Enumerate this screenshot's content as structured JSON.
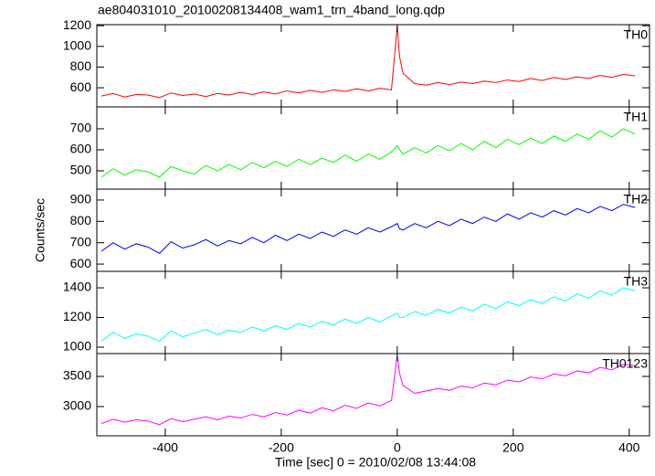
{
  "chart_data": [
    {
      "type": "line",
      "title": "ae804031010_20100208134408_wam1_trn_4band_long.qdp",
      "x": [
        -510,
        -490,
        -470,
        -450,
        -430,
        -410,
        -390,
        -370,
        -350,
        -330,
        -310,
        -290,
        -270,
        -250,
        -230,
        -210,
        -190,
        -170,
        -150,
        -130,
        -110,
        -90,
        -70,
        -50,
        -30,
        -10,
        0,
        4,
        10,
        30,
        50,
        70,
        90,
        110,
        130,
        150,
        170,
        190,
        210,
        230,
        250,
        270,
        290,
        310,
        330,
        350,
        370,
        390,
        410
      ],
      "series": [
        {
          "name": "TH0",
          "color": "#ff0000",
          "values": [
            520,
            545,
            510,
            535,
            530,
            505,
            550,
            525,
            540,
            515,
            545,
            530,
            555,
            535,
            560,
            540,
            570,
            550,
            575,
            555,
            580,
            565,
            590,
            570,
            595,
            580,
            1200,
            900,
            740,
            640,
            625,
            650,
            630,
            655,
            640,
            665,
            650,
            675,
            660,
            690,
            670,
            700,
            680,
            705,
            690,
            720,
            700,
            730,
            715
          ]
        }
      ],
      "xlim": [
        -518,
        435
      ],
      "xticks": [
        -400,
        -200,
        0,
        200,
        400
      ],
      "ylim": [
        415,
        1210
      ],
      "yticks": [
        600,
        800,
        1000,
        1200
      ]
    },
    {
      "type": "line",
      "x": [
        -510,
        -490,
        -470,
        -450,
        -430,
        -410,
        -390,
        -370,
        -350,
        -330,
        -310,
        -290,
        -270,
        -250,
        -230,
        -210,
        -190,
        -170,
        -150,
        -130,
        -110,
        -90,
        -70,
        -50,
        -30,
        -10,
        0,
        4,
        10,
        30,
        50,
        70,
        90,
        110,
        130,
        150,
        170,
        190,
        210,
        230,
        250,
        270,
        290,
        310,
        330,
        350,
        370,
        390,
        410
      ],
      "series": [
        {
          "name": "TH1",
          "color": "#00ff00",
          "values": [
            470,
            510,
            480,
            505,
            495,
            470,
            520,
            500,
            485,
            525,
            500,
            530,
            505,
            540,
            515,
            545,
            520,
            555,
            530,
            560,
            540,
            575,
            545,
            580,
            555,
            590,
            620,
            600,
            580,
            610,
            585,
            620,
            595,
            630,
            600,
            640,
            610,
            650,
            625,
            655,
            630,
            665,
            640,
            675,
            650,
            690,
            660,
            700,
            675
          ]
        }
      ],
      "xlim": [
        -518,
        435
      ],
      "xticks": [
        -400,
        -200,
        0,
        200,
        400
      ],
      "ylim": [
        413,
        804
      ],
      "yticks": [
        500,
        600,
        700
      ]
    },
    {
      "type": "line",
      "x": [
        -510,
        -490,
        -470,
        -450,
        -430,
        -410,
        -390,
        -370,
        -350,
        -330,
        -310,
        -290,
        -270,
        -250,
        -230,
        -210,
        -190,
        -170,
        -150,
        -130,
        -110,
        -90,
        -70,
        -50,
        -30,
        -10,
        0,
        4,
        10,
        30,
        50,
        70,
        90,
        110,
        130,
        150,
        170,
        190,
        210,
        230,
        250,
        270,
        290,
        310,
        330,
        350,
        370,
        390,
        410
      ],
      "series": [
        {
          "name": "TH2",
          "color": "#0000ff",
          "values": [
            660,
            700,
            670,
            695,
            680,
            650,
            705,
            675,
            690,
            715,
            685,
            710,
            695,
            725,
            700,
            735,
            710,
            740,
            720,
            750,
            730,
            760,
            740,
            770,
            750,
            775,
            790,
            765,
            760,
            790,
            770,
            800,
            780,
            810,
            790,
            820,
            800,
            835,
            810,
            840,
            820,
            850,
            830,
            860,
            840,
            870,
            850,
            880,
            865
          ]
        }
      ],
      "xlim": [
        -518,
        435
      ],
      "xticks": [
        -400,
        -200,
        0,
        200,
        400
      ],
      "ylim": [
        566,
        951
      ],
      "yticks": [
        600,
        700,
        800,
        900
      ]
    },
    {
      "type": "line",
      "ylabel": "Counts/sec",
      "x": [
        -510,
        -490,
        -470,
        -450,
        -430,
        -410,
        -390,
        -370,
        -350,
        -330,
        -310,
        -290,
        -270,
        -250,
        -230,
        -210,
        -190,
        -170,
        -150,
        -130,
        -110,
        -90,
        -70,
        -50,
        -30,
        -10,
        0,
        4,
        10,
        30,
        50,
        70,
        90,
        110,
        130,
        150,
        170,
        190,
        210,
        230,
        250,
        270,
        290,
        310,
        330,
        350,
        370,
        390,
        410
      ],
      "series": [
        {
          "name": "TH3",
          "color": "#00ffff",
          "values": [
            1040,
            1100,
            1060,
            1090,
            1075,
            1040,
            1110,
            1070,
            1095,
            1120,
            1085,
            1115,
            1100,
            1135,
            1110,
            1145,
            1120,
            1160,
            1135,
            1175,
            1150,
            1190,
            1160,
            1200,
            1170,
            1210,
            1230,
            1200,
            1200,
            1240,
            1215,
            1255,
            1230,
            1270,
            1245,
            1290,
            1260,
            1305,
            1280,
            1320,
            1295,
            1340,
            1310,
            1360,
            1330,
            1380,
            1350,
            1400,
            1380
          ]
        }
      ],
      "xlim": [
        -518,
        435
      ],
      "xticks": [
        -400,
        -200,
        0,
        200,
        400
      ],
      "ylim": [
        957,
        1511
      ],
      "yticks": [
        1000,
        1200,
        1400
      ]
    },
    {
      "type": "line",
      "xlabel": "Time [sec] 0 = 2010/02/08 13:44:08",
      "x": [
        -510,
        -490,
        -470,
        -450,
        -430,
        -410,
        -390,
        -370,
        -350,
        -330,
        -310,
        -290,
        -270,
        -250,
        -230,
        -210,
        -190,
        -170,
        -150,
        -130,
        -110,
        -90,
        -70,
        -50,
        -30,
        -10,
        0,
        4,
        10,
        30,
        50,
        70,
        90,
        110,
        130,
        150,
        170,
        190,
        210,
        230,
        250,
        270,
        290,
        310,
        330,
        350,
        370,
        390,
        410
      ],
      "series": [
        {
          "name": "TH0123",
          "color": "#ff00ff",
          "values": [
            2720,
            2790,
            2740,
            2780,
            2760,
            2700,
            2800,
            2750,
            2790,
            2830,
            2780,
            2840,
            2810,
            2870,
            2830,
            2900,
            2860,
            2940,
            2890,
            2980,
            2930,
            3020,
            2970,
            3060,
            3010,
            3100,
            3850,
            3550,
            3350,
            3220,
            3260,
            3300,
            3270,
            3340,
            3310,
            3390,
            3360,
            3440,
            3410,
            3490,
            3460,
            3540,
            3510,
            3590,
            3560,
            3650,
            3610,
            3700,
            3680
          ]
        }
      ],
      "xlim": [
        -518,
        435
      ],
      "xticks": [
        -400,
        -200,
        0,
        200,
        400
      ],
      "ylim": [
        2515,
        3879
      ],
      "yticks": [
        3000,
        3500
      ]
    }
  ]
}
